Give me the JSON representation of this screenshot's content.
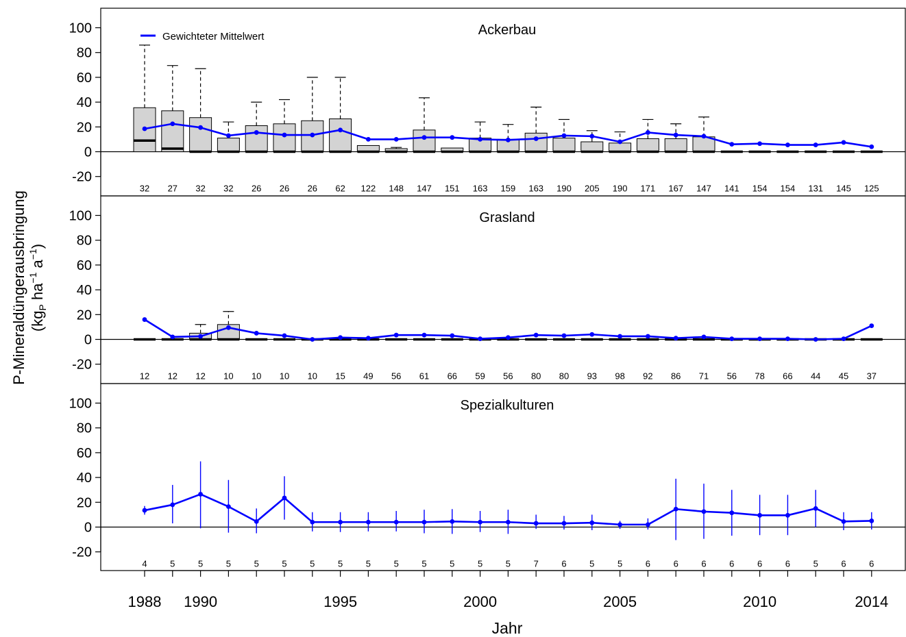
{
  "colors": {
    "series": "#0000ff",
    "box_fill": "#d3d3d3",
    "axis": "#000000"
  },
  "chart_data": {
    "type": "box+line",
    "xlabel": "Jahr",
    "ylabel_line1": "P-Mineraldüngerausbringung",
    "ylabel_line2": "(kg",
    "ylabel_sub": "P",
    "ylabel_unit1": " ha",
    "ylabel_exp1": "−1",
    "ylabel_unit2": " a",
    "ylabel_exp2": "−1",
    "ylabel_close": ")",
    "legend_label": "Gewichteter Mittelwert",
    "legend_position": "top-left",
    "ylim": [
      -20,
      100
    ],
    "yticks": [
      100,
      80,
      60,
      40,
      20,
      0,
      -20
    ],
    "years": [
      1988,
      1989,
      1990,
      1991,
      1992,
      1993,
      1994,
      1995,
      1996,
      1997,
      1998,
      1999,
      2000,
      2001,
      2002,
      2003,
      2004,
      2005,
      2006,
      2007,
      2008,
      2009,
      2010,
      2011,
      2012,
      2013,
      2014
    ],
    "xtick_labels": [
      {
        "year": 1988,
        "label": "1988"
      },
      {
        "year": 1990,
        "label": "1990"
      },
      {
        "year": 1995,
        "label": "1995"
      },
      {
        "year": 2000,
        "label": "2000"
      },
      {
        "year": 2005,
        "label": "2005"
      },
      {
        "year": 2010,
        "label": "2010"
      },
      {
        "year": 2014,
        "label": "2014"
      }
    ],
    "panels": [
      {
        "title": "Ackerbau",
        "mean": [
          18.5,
          22.5,
          19.5,
          13,
          15.5,
          13.5,
          13.5,
          17.5,
          10,
          10,
          11.5,
          11.5,
          10,
          9.5,
          10.5,
          13,
          12.5,
          8,
          15.5,
          13.5,
          12.5,
          6,
          6.5,
          5.5,
          5.5,
          7.5,
          4
        ],
        "n": [
          "32",
          "27",
          "32",
          "32",
          "26",
          "26",
          "26",
          "62",
          "122",
          "148",
          "147",
          "151",
          "163",
          "159",
          "163",
          "190",
          "205",
          "190",
          "171",
          "167",
          "147",
          "141",
          "154",
          "154",
          "131",
          "145",
          "125"
        ],
        "box_q1": [
          0,
          0,
          0,
          0,
          0,
          0,
          0,
          0,
          0,
          0,
          0,
          0,
          0,
          0,
          0,
          0,
          0,
          0,
          0,
          0,
          0,
          0,
          0,
          0,
          0,
          0,
          0
        ],
        "box_median": [
          9,
          2.5,
          0,
          0,
          0,
          0,
          0,
          0,
          0,
          0,
          0,
          0,
          0,
          0,
          0,
          0,
          0,
          0,
          0,
          0,
          0,
          0,
          0,
          0,
          0,
          0,
          0
        ],
        "box_q3": [
          35.5,
          33,
          27.5,
          11,
          21,
          22.5,
          25,
          26.5,
          5,
          2.5,
          17.5,
          3,
          11,
          10,
          15,
          11,
          8,
          7,
          10.5,
          10.5,
          12,
          0,
          0,
          0,
          0,
          0,
          0
        ],
        "box_whisker_high": [
          86,
          69.5,
          67,
          24,
          40,
          42,
          60,
          60,
          5,
          3.5,
          43.5,
          3,
          24,
          22,
          36,
          26,
          17,
          16,
          26,
          22.5,
          28,
          0,
          0,
          0,
          0,
          0,
          0
        ]
      },
      {
        "title": "Grasland",
        "mean": [
          16,
          2,
          2.5,
          9.5,
          5,
          3,
          0,
          1.5,
          1,
          3.5,
          3.5,
          3,
          0.5,
          1.5,
          3.5,
          3,
          4,
          2.5,
          2.5,
          1,
          2,
          0.5,
          0.5,
          0.5,
          0,
          0.5,
          11
        ],
        "n": [
          "12",
          "12",
          "12",
          "10",
          "10",
          "10",
          "10",
          "15",
          "49",
          "56",
          "61",
          "66",
          "59",
          "56",
          "80",
          "80",
          "93",
          "98",
          "92",
          "86",
          "71",
          "56",
          "78",
          "66",
          "44",
          "45",
          "37"
        ],
        "box_q1": [
          0,
          0,
          0,
          0,
          0,
          0,
          0,
          0,
          0,
          0,
          0,
          0,
          0,
          0,
          0,
          0,
          0,
          0,
          0,
          0,
          0,
          0,
          0,
          0,
          0,
          0,
          0
        ],
        "box_median": [
          0,
          0,
          0,
          0,
          0,
          0,
          0,
          0,
          0,
          0,
          0,
          0,
          0,
          0,
          0,
          0,
          0,
          0,
          0,
          0,
          0,
          0,
          0,
          0,
          0,
          0,
          0
        ],
        "box_q3": [
          0,
          0,
          5,
          12,
          0,
          0,
          0,
          0,
          0,
          0,
          0,
          0,
          0,
          0,
          0,
          0,
          0,
          0,
          0,
          0,
          0,
          0,
          0,
          0,
          0,
          0,
          0
        ],
        "box_whisker_high": [
          0,
          0,
          12,
          22.5,
          0,
          0,
          0,
          0,
          0,
          0,
          0,
          0,
          0,
          0,
          0,
          0,
          0,
          0,
          0,
          0,
          0,
          0,
          0,
          0,
          0,
          0,
          0
        ]
      },
      {
        "title": "Spezialkulturen",
        "mean": [
          13.5,
          18,
          26.5,
          16.5,
          4.5,
          23.5,
          4,
          4,
          4,
          4,
          4,
          4.5,
          4,
          4,
          3,
          3,
          3.5,
          2,
          2,
          14.5,
          12.5,
          11.5,
          9.5,
          9.5,
          15,
          4.5,
          5
        ],
        "n": [
          "4",
          "5",
          "5",
          "5",
          "5",
          "5",
          "5",
          "5",
          "5",
          "5",
          "5",
          "5",
          "5",
          "5",
          "7",
          "6",
          "5",
          "5",
          "6",
          "6",
          "6",
          "6",
          "6",
          "6",
          "5",
          "6",
          "6"
        ],
        "err_low": [
          10,
          3,
          -1,
          -4.5,
          -5,
          6,
          -3.5,
          -4,
          -3.5,
          -3.5,
          -5,
          -5.5,
          -4,
          -5.5,
          -1.5,
          -2,
          -2.5,
          -1.5,
          -2,
          -10.5,
          -9.5,
          -7,
          -6.5,
          -6.5,
          0,
          -2.5,
          -2
        ],
        "err_high": [
          17,
          34,
          53,
          38,
          15,
          41,
          12,
          12,
          12,
          13,
          14,
          14.5,
          13,
          14,
          10,
          9,
          10,
          5,
          7,
          39,
          35,
          30,
          26,
          26,
          30,
          12,
          12
        ]
      }
    ]
  }
}
